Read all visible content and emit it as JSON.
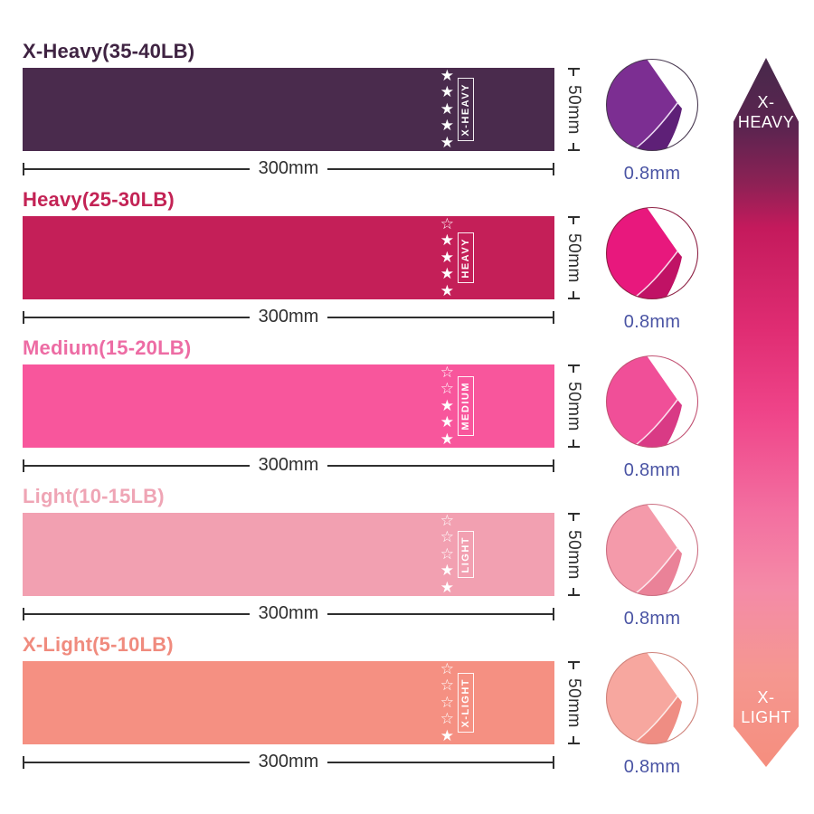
{
  "bands": [
    {
      "title": "X-Heavy(35-40LB)",
      "title_color": "#3F2342",
      "band_color": "#4A2B4D",
      "label": "X-HEAVY",
      "stars_total": 5,
      "stars_filled": 5,
      "width_label": "300mm",
      "height_label": "50mm",
      "thickness_label": "0.8mm",
      "photo": {
        "main": "#7C2E92",
        "shade": "#5E2077",
        "seam": "#EBD9F2",
        "ring": "#4A3A52"
      }
    },
    {
      "title": "Heavy(25-30LB)",
      "title_color": "#C32355",
      "band_color": "#C41F58",
      "label": "HEAVY",
      "stars_total": 5,
      "stars_filled": 4,
      "width_label": "300mm",
      "height_label": "50mm",
      "thickness_label": "0.8mm",
      "photo": {
        "main": "#E8187D",
        "shade": "#C01265",
        "seam": "#F7D3E6",
        "ring": "#8E2245"
      }
    },
    {
      "title": "Medium(15-20LB)",
      "title_color": "#ED6CA4",
      "band_color": "#F8569C",
      "label": "MEDIUM",
      "stars_total": 5,
      "stars_filled": 3,
      "width_label": "300mm",
      "height_label": "50mm",
      "thickness_label": "0.8mm",
      "photo": {
        "main": "#F04F98",
        "shade": "#D93A85",
        "seam": "#FBDCEB",
        "ring": "#C25374"
      }
    },
    {
      "title": "Light(10-15LB)",
      "title_color": "#EFA5B5",
      "band_color": "#F2A0B1",
      "label": "LIGHT",
      "stars_total": 5,
      "stars_filled": 2,
      "width_label": "300mm",
      "height_label": "50mm",
      "thickness_label": "0.8mm",
      "photo": {
        "main": "#F49AAA",
        "shade": "#EA8298",
        "seam": "#FCE7EC",
        "ring": "#CC7083"
      }
    },
    {
      "title": "X-Light(5-10LB)",
      "title_color": "#F08B7E",
      "band_color": "#F59082",
      "label": "X-LIGHT",
      "stars_total": 5,
      "stars_filled": 1,
      "width_label": "300mm",
      "height_label": "50mm",
      "thickness_label": "0.8mm",
      "photo": {
        "main": "#F7A79F",
        "shade": "#EF8D83",
        "seam": "#FCE9E6",
        "ring": "#CF837B"
      }
    }
  ],
  "scale_arrow": {
    "top_label_line1": "X-",
    "top_label_line2": "HEAVY",
    "bottom_label_line1": "X-",
    "bottom_label_line2": "LIGHT",
    "text_color": "#FFFFFF",
    "gradient": [
      {
        "color": "#47294B",
        "pos": 0
      },
      {
        "color": "#5C2450",
        "pos": 10
      },
      {
        "color": "#8F2155",
        "pos": 18
      },
      {
        "color": "#C41A5C",
        "pos": 24
      },
      {
        "color": "#DF2C72",
        "pos": 38
      },
      {
        "color": "#EF4489",
        "pos": 50
      },
      {
        "color": "#F36FA0",
        "pos": 64
      },
      {
        "color": "#F48BA7",
        "pos": 75
      },
      {
        "color": "#F59790",
        "pos": 87
      },
      {
        "color": "#F58E7E",
        "pos": 100
      }
    ]
  },
  "style": {
    "dimension_text_color": "#2F2F2F",
    "thickness_text_color": "#4A54A4",
    "star_color": "#FFFFFF",
    "background": "#FFFFFF"
  }
}
